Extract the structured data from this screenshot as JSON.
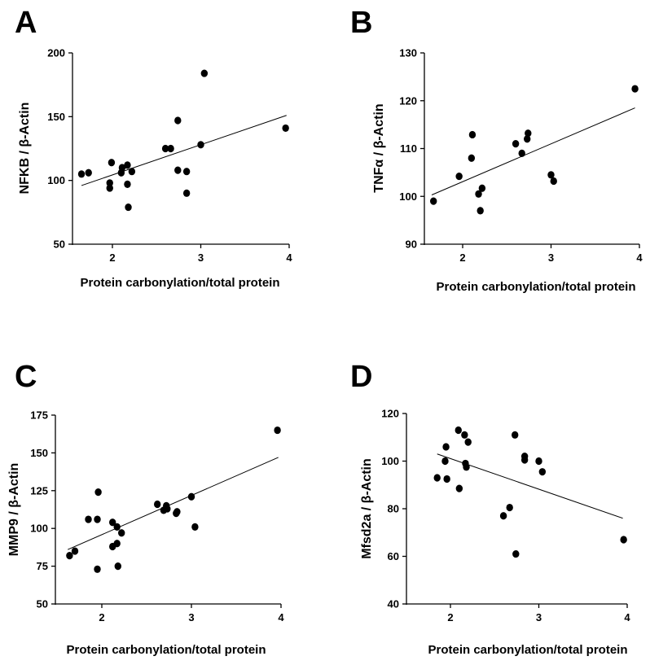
{
  "chart_data": [
    {
      "type": "scatter",
      "panel": "A",
      "xlabel": "Protein carbonylation/total protein",
      "ylabel": "NFKB / β-Actin",
      "xlim": [
        1.6,
        4.0
      ],
      "ylim": [
        50,
        200
      ],
      "xticks": [
        2,
        3,
        4
      ],
      "yticks": [
        50,
        100,
        150,
        200
      ],
      "trendline": {
        "x": [
          1.65,
          3.97
        ],
        "y": [
          96,
          151
        ]
      },
      "points": [
        {
          "x": 1.65,
          "y": 105
        },
        {
          "x": 1.73,
          "y": 106
        },
        {
          "x": 1.97,
          "y": 98
        },
        {
          "x": 1.97,
          "y": 94
        },
        {
          "x": 1.99,
          "y": 114
        },
        {
          "x": 2.1,
          "y": 106
        },
        {
          "x": 2.11,
          "y": 110
        },
        {
          "x": 2.17,
          "y": 112
        },
        {
          "x": 2.17,
          "y": 97
        },
        {
          "x": 2.18,
          "y": 79
        },
        {
          "x": 2.22,
          "y": 107
        },
        {
          "x": 2.6,
          "y": 125
        },
        {
          "x": 2.66,
          "y": 125
        },
        {
          "x": 2.74,
          "y": 147
        },
        {
          "x": 2.74,
          "y": 108
        },
        {
          "x": 2.84,
          "y": 107
        },
        {
          "x": 2.84,
          "y": 90
        },
        {
          "x": 3.0,
          "y": 128
        },
        {
          "x": 3.04,
          "y": 184
        },
        {
          "x": 3.96,
          "y": 141
        }
      ]
    },
    {
      "type": "scatter",
      "panel": "B",
      "xlabel": "Protein carbonylation/total protein",
      "ylabel": "TNFα / β-Actin",
      "xlim": [
        1.6,
        4.0
      ],
      "ylim": [
        90,
        130
      ],
      "xticks": [
        2,
        3,
        4
      ],
      "yticks": [
        90,
        100,
        110,
        120,
        130
      ],
      "trendline": {
        "x": [
          1.65,
          3.95
        ],
        "y": [
          100.3,
          118.5
        ]
      },
      "points": [
        {
          "x": 1.67,
          "y": 99
        },
        {
          "x": 1.96,
          "y": 104.2
        },
        {
          "x": 2.1,
          "y": 108
        },
        {
          "x": 2.11,
          "y": 112.9
        },
        {
          "x": 2.18,
          "y": 100.5
        },
        {
          "x": 2.2,
          "y": 97
        },
        {
          "x": 2.22,
          "y": 101.7
        },
        {
          "x": 2.6,
          "y": 111
        },
        {
          "x": 2.67,
          "y": 109
        },
        {
          "x": 2.73,
          "y": 112
        },
        {
          "x": 2.74,
          "y": 113.2
        },
        {
          "x": 3.0,
          "y": 104.5
        },
        {
          "x": 3.03,
          "y": 103.2
        },
        {
          "x": 3.95,
          "y": 122.5
        }
      ]
    },
    {
      "type": "scatter",
      "panel": "C",
      "xlabel": "Protein carbonylation/total protein",
      "ylabel": "MMP9 / β-Actin",
      "xlim": [
        1.55,
        4.0
      ],
      "ylim": [
        50,
        175
      ],
      "xticks": [
        2,
        3,
        4
      ],
      "yticks": [
        50,
        75,
        100,
        125,
        150,
        175
      ],
      "trendline": {
        "x": [
          1.62,
          3.97
        ],
        "y": [
          86,
          147
        ]
      },
      "points": [
        {
          "x": 1.64,
          "y": 82
        },
        {
          "x": 1.7,
          "y": 85
        },
        {
          "x": 1.85,
          "y": 106
        },
        {
          "x": 1.95,
          "y": 106
        },
        {
          "x": 1.95,
          "y": 73
        },
        {
          "x": 1.96,
          "y": 124
        },
        {
          "x": 2.12,
          "y": 104
        },
        {
          "x": 2.12,
          "y": 88
        },
        {
          "x": 2.17,
          "y": 101
        },
        {
          "x": 2.17,
          "y": 90
        },
        {
          "x": 2.18,
          "y": 75
        },
        {
          "x": 2.22,
          "y": 97
        },
        {
          "x": 2.62,
          "y": 116
        },
        {
          "x": 2.69,
          "y": 112
        },
        {
          "x": 2.72,
          "y": 115
        },
        {
          "x": 2.73,
          "y": 113
        },
        {
          "x": 2.83,
          "y": 110
        },
        {
          "x": 2.84,
          "y": 111
        },
        {
          "x": 3.0,
          "y": 121
        },
        {
          "x": 3.04,
          "y": 101
        },
        {
          "x": 3.96,
          "y": 165
        }
      ]
    },
    {
      "type": "scatter",
      "panel": "D",
      "xlabel": "Protein carbonylation/total protein",
      "ylabel": "Mfsd2a / β-Actin",
      "xlim": [
        1.6,
        4.0
      ],
      "ylim": [
        40,
        120
      ],
      "xticks": [
        2,
        3,
        4
      ],
      "yticks": [
        40,
        60,
        80,
        100,
        120
      ],
      "trendline": {
        "x": [
          1.85,
          3.95
        ],
        "y": [
          103,
          76
        ]
      },
      "points": [
        {
          "x": 1.85,
          "y": 93
        },
        {
          "x": 1.94,
          "y": 100
        },
        {
          "x": 1.95,
          "y": 106
        },
        {
          "x": 1.96,
          "y": 92.5
        },
        {
          "x": 2.09,
          "y": 113
        },
        {
          "x": 2.1,
          "y": 88.5
        },
        {
          "x": 2.16,
          "y": 111
        },
        {
          "x": 2.17,
          "y": 99
        },
        {
          "x": 2.18,
          "y": 97.5
        },
        {
          "x": 2.2,
          "y": 108
        },
        {
          "x": 2.6,
          "y": 77
        },
        {
          "x": 2.67,
          "y": 80.5
        },
        {
          "x": 2.73,
          "y": 111
        },
        {
          "x": 2.74,
          "y": 61
        },
        {
          "x": 2.84,
          "y": 102
        },
        {
          "x": 2.84,
          "y": 100.5
        },
        {
          "x": 3.0,
          "y": 100
        },
        {
          "x": 3.04,
          "y": 95.5
        },
        {
          "x": 3.96,
          "y": 67
        }
      ]
    }
  ]
}
